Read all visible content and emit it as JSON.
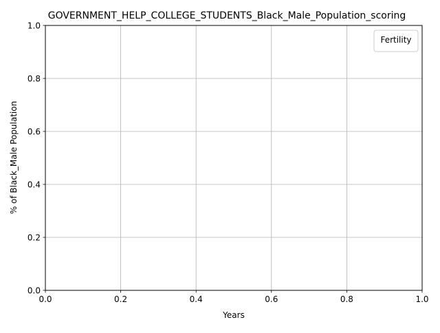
{
  "chart_data": {
    "type": "line",
    "title": "GOVERNMENT_HELP_COLLEGE_STUDENTS_Black_Male_Population_scoring",
    "xlabel": "Years",
    "ylabel": "% of Black_Male Population",
    "xlim": [
      0.0,
      1.0
    ],
    "ylim": [
      0.0,
      1.0
    ],
    "x_ticks": [
      "0.0",
      "0.2",
      "0.4",
      "0.6",
      "0.8",
      "1.0"
    ],
    "y_ticks": [
      "0.0",
      "0.2",
      "0.4",
      "0.6",
      "0.8",
      "1.0"
    ],
    "grid": true,
    "legend": {
      "title": "Fertility",
      "placement": "top-right",
      "entries": []
    },
    "series": []
  }
}
